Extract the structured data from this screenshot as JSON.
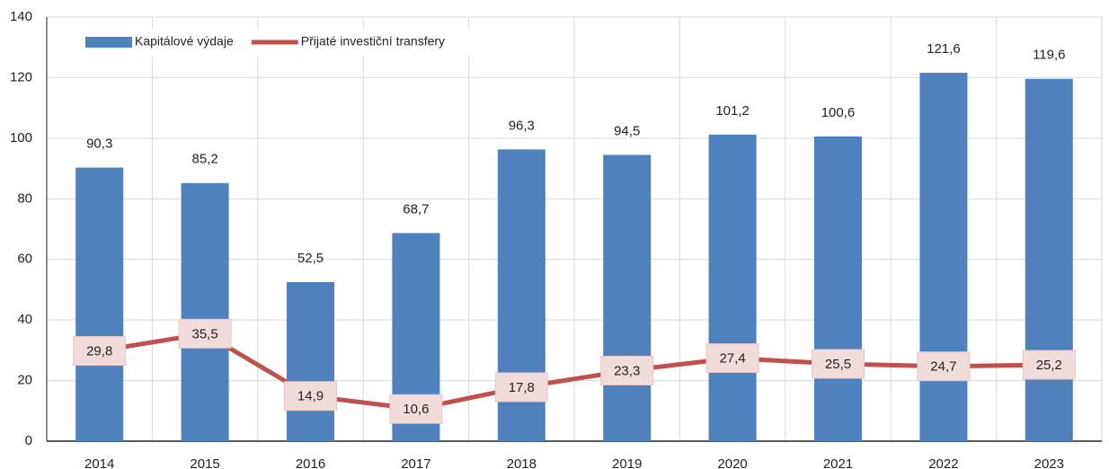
{
  "chart_data": {
    "type": "bar_line",
    "categories": [
      "2014",
      "2015",
      "2016",
      "2017",
      "2018",
      "2019",
      "2020",
      "2021",
      "2022",
      "2023"
    ],
    "series": [
      {
        "name": "Kapitálové výdaje",
        "type": "bar",
        "color": "#4f81bd",
        "values": [
          90.3,
          85.2,
          52.5,
          68.7,
          96.3,
          94.5,
          101.2,
          100.6,
          121.6,
          119.6
        ],
        "value_labels": [
          "90,3",
          "85,2",
          "52,5",
          "68,7",
          "96,3",
          "94,5",
          "101,2",
          "100,6",
          "121,6",
          "119,6"
        ]
      },
      {
        "name": "Přijaté investiční transfery",
        "type": "line",
        "color": "#c0504d",
        "values": [
          29.8,
          35.5,
          14.9,
          10.6,
          17.8,
          23.3,
          27.4,
          25.5,
          24.7,
          25.2
        ],
        "value_labels": [
          "29,8",
          "35,5",
          "14,9",
          "10,6",
          "17,8",
          "23,3",
          "27,4",
          "25,5",
          "24,7",
          "25,2"
        ]
      }
    ],
    "ylim": [
      0,
      140
    ],
    "yticks": [
      0,
      20,
      40,
      60,
      80,
      100,
      120,
      140
    ],
    "grid": true,
    "legend": "top-left"
  }
}
